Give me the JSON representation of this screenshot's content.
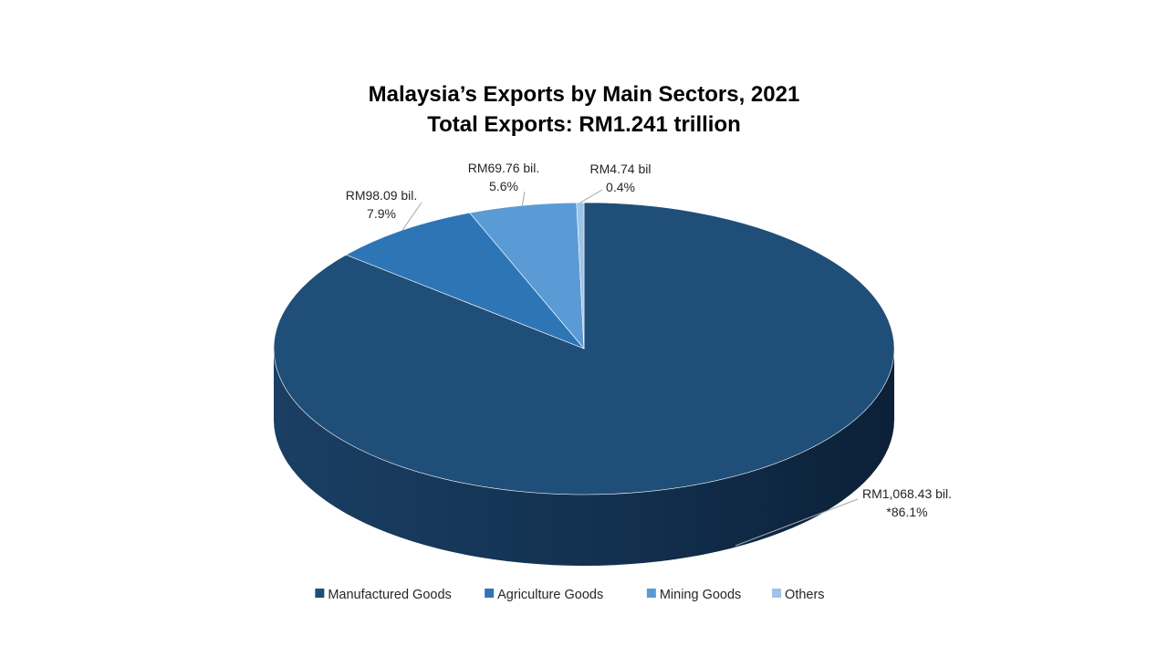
{
  "chart_data": {
    "type": "pie",
    "title": "Malaysia’s Exports by Main Sectors, 2021",
    "subtitle": "Total Exports: RM1.241 trillion",
    "slices": [
      {
        "name": "Manufactured Goods",
        "value": 1068.43,
        "percent": 86.1,
        "label_value": "RM1,068.43 bil.",
        "label_percent": "*86.1%",
        "color": "#1f4e79"
      },
      {
        "name": "Agriculture Goods",
        "value": 98.09,
        "percent": 7.9,
        "label_value": "RM98.09 bil.",
        "label_percent": "7.9%",
        "color": "#2e75b6"
      },
      {
        "name": "Mining Goods",
        "value": 69.76,
        "percent": 5.6,
        "label_value": "RM69.76 bil.",
        "label_percent": "5.6%",
        "color": "#5b9bd5"
      },
      {
        "name": "Others",
        "value": 4.74,
        "percent": 0.4,
        "label_value": "RM4.74 bil",
        "label_percent": "0.4%",
        "color": "#9dc3e6"
      }
    ],
    "three_d": true,
    "legend_position": "bottom"
  }
}
